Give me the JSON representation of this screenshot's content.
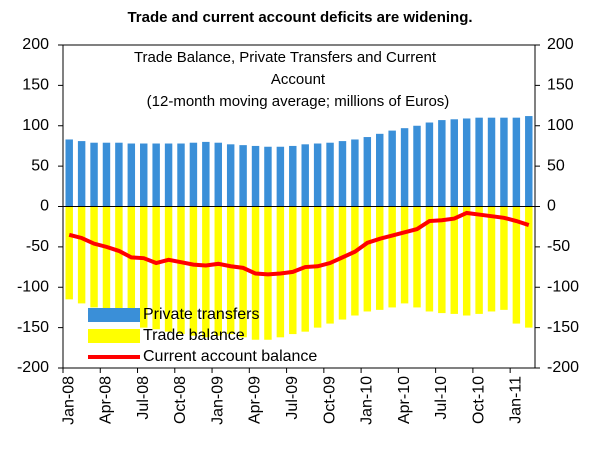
{
  "chart_data": {
    "type": "bar",
    "title": "Trade and current account deficits are widening.",
    "subtitle": [
      "Trade Balance, Private Transfers and Current",
      "Account",
      "(12-month moving average; millions of Euros)"
    ],
    "categories": [
      "Jan-08",
      null,
      null,
      "Apr-08",
      null,
      null,
      "Jul-08",
      null,
      null,
      "Oct-08",
      null,
      null,
      "Jan-09",
      null,
      null,
      "Apr-09",
      null,
      null,
      "Jul-09",
      null,
      null,
      "Oct-09",
      null,
      null,
      "Jan-10",
      null,
      null,
      "Apr-10",
      null,
      null,
      "Jul-10",
      null,
      null,
      "Oct-10",
      null,
      null,
      "Jan-11",
      null
    ],
    "series": [
      {
        "name": "Private transfers",
        "color": "#3a8fd8",
        "type": "bar",
        "values": [
          83,
          81,
          79,
          79,
          79,
          78,
          78,
          78,
          78,
          78,
          79,
          80,
          79,
          77,
          76,
          75,
          74,
          74,
          75,
          77,
          78,
          79,
          81,
          83,
          86,
          90,
          94,
          97,
          100,
          104,
          107,
          108,
          109,
          110,
          110,
          110,
          110,
          112
        ]
      },
      {
        "name": "Trade balance",
        "color": "#ffff00",
        "type": "bar",
        "values": [
          -115,
          -120,
          -125,
          -128,
          -130,
          -140,
          -150,
          -152,
          -155,
          -158,
          -160,
          -162,
          -160,
          -158,
          -162,
          -165,
          -165,
          -162,
          -158,
          -155,
          -150,
          -145,
          -140,
          -135,
          -130,
          -128,
          -125,
          -120,
          -125,
          -130,
          -132,
          -133,
          -135,
          -133,
          -130,
          -128,
          -145,
          -150
        ]
      },
      {
        "name": "Current account balance",
        "color": "#ff0000",
        "type": "line",
        "values": [
          -35,
          -39,
          -46,
          -50,
          -55,
          -63,
          -64,
          -70,
          -66,
          -69,
          -72,
          -73,
          -71,
          -74,
          -76,
          -83,
          -84,
          -83,
          -81,
          -75,
          -74,
          -70,
          -63,
          -56,
          -45,
          -40,
          -36,
          -32,
          -28,
          -18,
          -17,
          -15,
          -8,
          -10,
          -12,
          -14,
          -18,
          -23
        ]
      }
    ],
    "ylim": [
      -200,
      200
    ],
    "yticks": [
      -200,
      -150,
      -100,
      -50,
      0,
      50,
      100,
      150,
      200
    ],
    "y2lim": [
      -200,
      200
    ],
    "y2ticks": [
      -200,
      -150,
      -100,
      -50,
      0,
      50,
      100,
      150,
      200
    ],
    "legend": "lower-left"
  }
}
